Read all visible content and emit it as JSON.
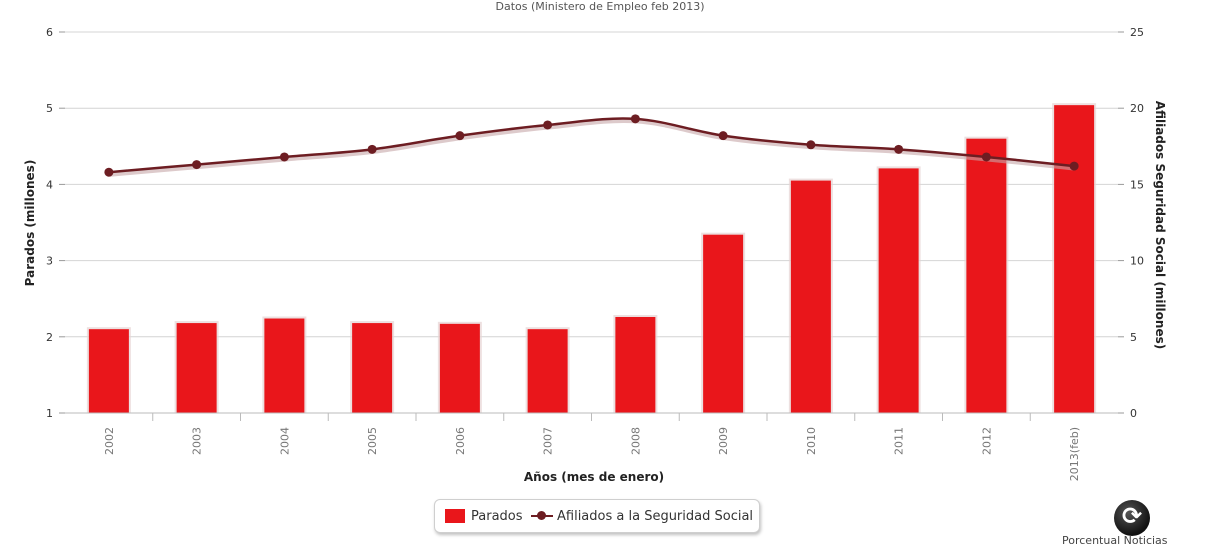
{
  "subtitle": "Datos (Ministero de Empleo feb 2013)",
  "credit": "Porcentual Noticias",
  "chart_data": {
    "type": "bar",
    "categories": [
      "2002",
      "2003",
      "2004",
      "2005",
      "2006",
      "2007",
      "2008",
      "2009",
      "2010",
      "2011",
      "2012",
      "2013(feb)"
    ],
    "series": [
      {
        "name": "Parados",
        "type": "bar",
        "axis": "left",
        "color": "#e9161b",
        "values": [
          2.1,
          2.18,
          2.24,
          2.18,
          2.17,
          2.1,
          2.26,
          3.34,
          4.05,
          4.21,
          4.6,
          5.04
        ]
      },
      {
        "name": "Afiliados a la Seguridad Social",
        "type": "line",
        "axis": "right",
        "color": "#6d1d22",
        "values": [
          15.8,
          16.3,
          16.8,
          17.3,
          18.2,
          18.9,
          19.3,
          18.2,
          17.6,
          17.3,
          16.8,
          16.2
        ]
      }
    ],
    "xlabel": "Años (mes de enero)",
    "ylabel_left": "Parados (millones)",
    "ylabel_right": "Afiliados Seguridad Social (millones)",
    "ylim_left": [
      1,
      6
    ],
    "yticks_left": [
      1,
      2,
      3,
      4,
      5,
      6
    ],
    "ylim_right": [
      0,
      25
    ],
    "yticks_right": [
      0,
      5,
      10,
      15,
      20,
      25
    ],
    "grid": true,
    "legend": "bottom-center"
  }
}
